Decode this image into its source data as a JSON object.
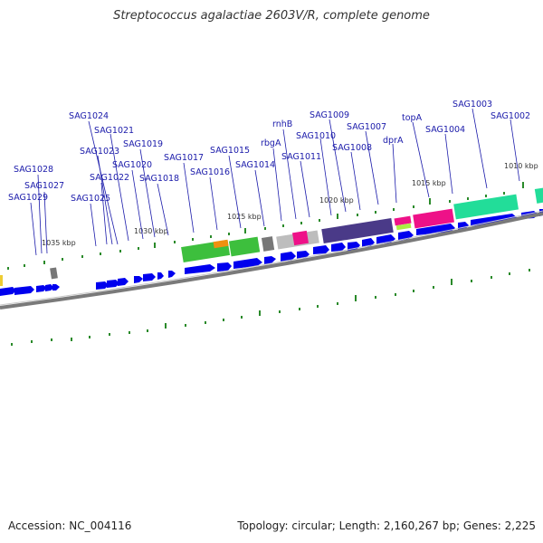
{
  "title": "Streptococcus agalactiae 2603V/R, complete genome",
  "footer": {
    "accession": "Accession: NC_004116",
    "summary": "Topology: circular; Length: 2,160,267 bp; Genes: 2,225"
  },
  "colors": {
    "forward_cds": "#0000ee",
    "label": "#1a1aaa",
    "tick": "#2a8a2a",
    "backbone": "#888888",
    "green_fn": "#3dbf3d",
    "orange_fn": "#f09010",
    "grey_fn": "#777777",
    "lightgrey_fn": "#bdbdbd",
    "magenta_fn": "#ee1188",
    "purple_fn": "#4a3a88",
    "teal_fn": "#22dd99",
    "lime_fn": "#aaee44"
  },
  "kbp_labels": [
    "1010 kbp",
    "1015 kbp",
    "1020 kbp",
    "1025 kbp",
    "1030 kbp",
    "1035 kbp"
  ],
  "gene_labels": [
    "SAG1029",
    "SAG1027",
    "SAG1028",
    "SAG1025",
    "SAG1022",
    "SAG1023",
    "SAG1024",
    "SAG1021",
    "SAG1020",
    "SAG1019",
    "SAG1018",
    "SAG1017",
    "SAG1016",
    "SAG1015",
    "SAG1014",
    "rbgA",
    "rnhB",
    "SAG1011",
    "SAG1010",
    "SAG1009",
    "SAG1008",
    "SAG1007",
    "dprA",
    "topA",
    "SAG1004",
    "SAG1003",
    "SAG1002"
  ]
}
